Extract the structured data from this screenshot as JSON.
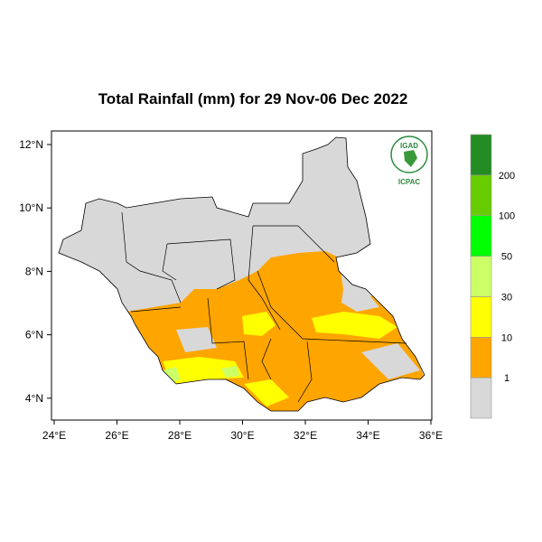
{
  "title": "Total Rainfall (mm) for 29 Nov-06 Dec 2022",
  "axes": {
    "lat_ticks": [
      "12°N",
      "10°N",
      "8°N",
      "6°N",
      "4°N"
    ],
    "lon_ticks": [
      "24°E",
      "26°E",
      "28°E",
      "30°E",
      "32°E",
      "34°E",
      "36°E"
    ],
    "lon_range": [
      24,
      36
    ],
    "lat_range": [
      3.4,
      12.4
    ]
  },
  "legend": {
    "boundaries": [
      "1",
      "10",
      "30",
      "50",
      "100",
      "200"
    ],
    "colors": [
      "#d8d8d8",
      "#ffa500",
      "#ffff00",
      "#ccff66",
      "#00ff00",
      "#66cc00",
      "#228b22"
    ]
  },
  "logo": {
    "top_text": "IGAD",
    "bottom_text": "ICPAC"
  },
  "map_colors": {
    "no_rain": "#d8d8d8",
    "rain_1_10": "#ffa500",
    "rain_10_30": "#ffff00",
    "rain_30_50": "#ccff66"
  }
}
